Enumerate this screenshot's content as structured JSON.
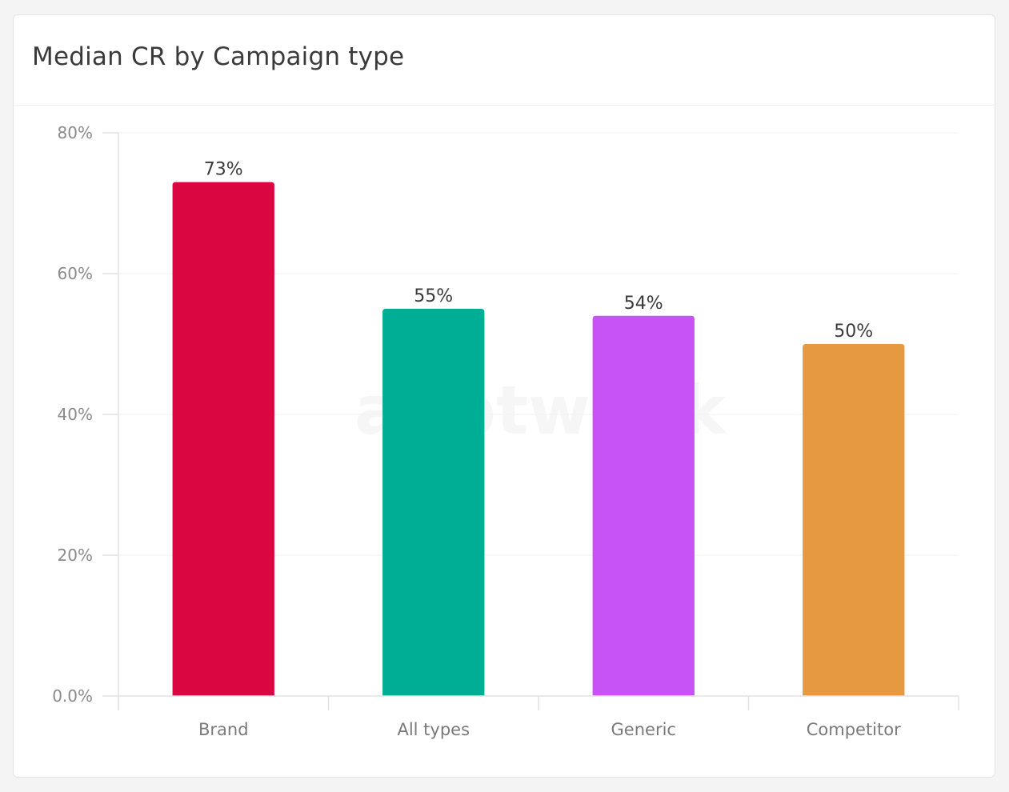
{
  "card": {
    "title": "Median CR by Campaign type"
  },
  "chart_data": {
    "type": "bar",
    "title": "Median CR by Campaign type",
    "xlabel": "",
    "ylabel": "",
    "categories": [
      "Brand",
      "All types",
      "Generic",
      "Competitor"
    ],
    "values": [
      73,
      55,
      54,
      50
    ],
    "value_labels": [
      "73%",
      "55%",
      "54%",
      "50%"
    ],
    "colors": [
      "#d90641",
      "#00ad95",
      "#c752f5",
      "#e79942"
    ],
    "ylim": [
      0,
      80
    ],
    "yticks": [
      0,
      20,
      40,
      60,
      80
    ],
    "ytick_labels": [
      "0.0%",
      "20%",
      "40%",
      "60%",
      "80%"
    ],
    "grid": true,
    "legend": "none"
  },
  "colors": {
    "gridline": "#f2f2f4",
    "axis": "#e2e2e6",
    "watermark": "#f6f6f7"
  },
  "watermark": {
    "text": "apptweak"
  }
}
